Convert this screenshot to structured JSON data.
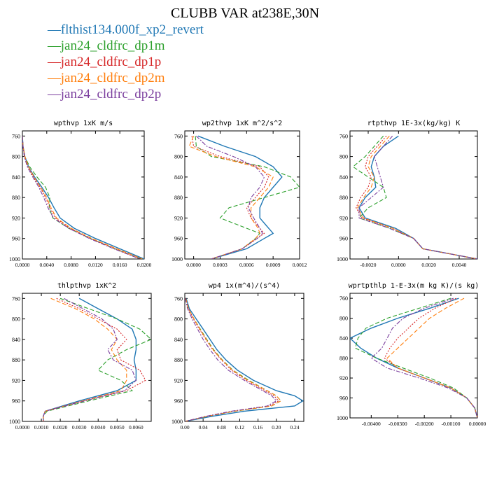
{
  "figure": {
    "title": "CLUBB VAR at238E,30N"
  },
  "legend": {
    "items": [
      {
        "name": "flthist134.000f_xp2_revert",
        "color": "#1f77b4",
        "dash": "solid"
      },
      {
        "name": "jan24_cldfrc_dp1m",
        "color": "#2ca02c",
        "dash": "dash"
      },
      {
        "name": "jan24_cldfrc_dp1p",
        "color": "#d62728",
        "dash": "dot"
      },
      {
        "name": "jan24_cldfrc_dp2m",
        "color": "#ff7f0e",
        "dash": "dash"
      },
      {
        "name": "jan24_cldfrc_dp2p",
        "color": "#7b3f9e",
        "dash": "dashdot"
      }
    ]
  },
  "chart_data": [
    {
      "type": "line",
      "title": "wpthvp  1xK m/s",
      "xlim": [
        0.0,
        0.02
      ],
      "ylim": [
        1000,
        750
      ],
      "xticks": [
        "0.0000",
        "0.0040",
        "0.0080",
        "0.0120",
        "0.0160",
        "0.0200"
      ],
      "yticks": [
        "760",
        "800",
        "840",
        "880",
        "920",
        "960",
        "1000"
      ],
      "y": [
        760,
        780,
        800,
        820,
        840,
        860,
        880,
        900,
        920,
        940,
        960,
        980,
        1000
      ],
      "series": [
        {
          "name": "flthist134.000f_xp2_revert",
          "values": [
            0.0,
            0.0001,
            0.0004,
            0.001,
            0.002,
            0.0032,
            0.0043,
            0.0052,
            0.0062,
            0.0085,
            0.012,
            0.016,
            0.02
          ]
        },
        {
          "name": "jan24_cldfrc_dp1m",
          "values": [
            0.0,
            0.0001,
            0.0004,
            0.0012,
            0.0024,
            0.0038,
            0.0045,
            0.0044,
            0.005,
            0.0076,
            0.0112,
            0.0152,
            0.0196
          ]
        },
        {
          "name": "jan24_cldfrc_dp1p",
          "values": [
            0.0,
            0.0001,
            0.0004,
            0.0009,
            0.0018,
            0.0029,
            0.0038,
            0.0045,
            0.0054,
            0.0078,
            0.0112,
            0.0152,
            0.0195
          ]
        },
        {
          "name": "jan24_cldfrc_dp2m",
          "values": [
            0.0,
            0.0001,
            0.0004,
            0.001,
            0.0019,
            0.003,
            0.004,
            0.0047,
            0.0056,
            0.008,
            0.0114,
            0.0155,
            0.0197
          ]
        },
        {
          "name": "jan24_cldfrc_dp2p",
          "values": [
            0.0,
            0.0001,
            0.0003,
            0.0008,
            0.0017,
            0.0027,
            0.0035,
            0.0042,
            0.0051,
            0.0076,
            0.011,
            0.015,
            0.0193
          ]
        }
      ]
    },
    {
      "type": "line",
      "title": "wp2thvp  1xK m^2/s^2",
      "xlim": [
        -0.0001,
        0.0012
      ],
      "ylim": [
        1000,
        750
      ],
      "xticks": [
        "0.0000",
        "0.0003",
        "0.0006",
        "0.0009",
        "0.0012"
      ],
      "yticks": [
        "760",
        "800",
        "840",
        "880",
        "920",
        "960",
        "1000"
      ],
      "y": [
        760,
        780,
        800,
        820,
        840,
        860,
        880,
        900,
        920,
        940,
        950,
        960,
        980,
        1000
      ],
      "series": [
        {
          "name": "flthist134.000f_xp2_revert",
          "values": [
            5e-05,
            0.00035,
            0.0007,
            0.0009,
            0.001,
            0.0009,
            0.0008,
            0.00075,
            0.00075,
            0.00085,
            0.0009,
            0.0008,
            0.0006,
            0.0002
          ]
        },
        {
          "name": "jan24_cldfrc_dp1m",
          "values": [
            2e-05,
            3e-05,
            0.0002,
            0.0008,
            0.0011,
            0.0012,
            0.0008,
            0.0004,
            0.0003,
            0.0006,
            0.00075,
            0.0007,
            0.00055,
            0.0002
          ]
        },
        {
          "name": "jan24_cldfrc_dp1p",
          "values": [
            -2e-05,
            0.0,
            0.0003,
            0.00075,
            0.00085,
            0.0008,
            0.0007,
            0.0006,
            0.00065,
            0.00075,
            0.0008,
            0.00072,
            0.00055,
            0.0002
          ]
        },
        {
          "name": "jan24_cldfrc_dp2m",
          "values": [
            0.0,
            -5e-05,
            0.00025,
            0.0007,
            0.0009,
            0.00085,
            0.00075,
            0.00065,
            0.00065,
            0.00073,
            0.00075,
            0.0007,
            0.00055,
            0.0002
          ]
        },
        {
          "name": "jan24_cldfrc_dp2p",
          "values": [
            3e-05,
            0.00015,
            0.00045,
            0.0007,
            0.0008,
            0.00075,
            0.00065,
            0.00062,
            0.00068,
            0.00075,
            0.00078,
            0.00072,
            0.00055,
            0.0002
          ]
        }
      ]
    },
    {
      "type": "line",
      "title": "rtpthvp  1E-3x(kg/kg) K",
      "xlim": [
        -0.0032,
        0.0052
      ],
      "ylim": [
        1000,
        750
      ],
      "xticks": [
        "-0.0020",
        "0.0000",
        "0.0020",
        "0.0040"
      ],
      "yticks": [
        "760",
        "800",
        "840",
        "880",
        "920",
        "960",
        "1000"
      ],
      "y": [
        760,
        780,
        800,
        820,
        840,
        860,
        880,
        900,
        920,
        940,
        960,
        980,
        1000
      ],
      "series": [
        {
          "name": "flthist134.000f_xp2_revert",
          "values": [
            0.0,
            -0.001,
            -0.0016,
            -0.0018,
            -0.0016,
            -0.0015,
            -0.0022,
            -0.0026,
            -0.0022,
            -0.0002,
            0.001,
            0.0016,
            0.0052
          ]
        },
        {
          "name": "jan24_cldfrc_dp1m",
          "values": [
            -0.001,
            -0.0016,
            -0.0022,
            -0.003,
            -0.002,
            -0.001,
            -0.0008,
            -0.002,
            -0.0026,
            -0.0006,
            0.001,
            0.0016,
            0.0052
          ]
        },
        {
          "name": "jan24_cldfrc_dp1p",
          "values": [
            -0.0008,
            -0.0014,
            -0.002,
            -0.0022,
            -0.0018,
            -0.002,
            -0.0025,
            -0.0028,
            -0.0024,
            -0.0004,
            0.001,
            0.0016,
            0.0052
          ]
        },
        {
          "name": "jan24_cldfrc_dp2m",
          "values": [
            -0.0006,
            -0.0012,
            -0.0018,
            -0.002,
            -0.0016,
            -0.0018,
            -0.0023,
            -0.0027,
            -0.0023,
            -0.0004,
            0.001,
            0.0016,
            0.0052
          ]
        },
        {
          "name": "jan24_cldfrc_dp2p",
          "values": [
            -0.0004,
            -0.001,
            -0.0016,
            -0.0014,
            -0.0012,
            -0.001,
            -0.0018,
            -0.0026,
            -0.0026,
            -0.0006,
            0.001,
            0.0016,
            0.0052
          ]
        }
      ]
    },
    {
      "type": "line",
      "title": "thlpthvp  1xK^2",
      "xlim": [
        0.0,
        0.0068
      ],
      "ylim": [
        1000,
        750
      ],
      "xticks": [
        "0.0000",
        "0.0010",
        "0.0020",
        "0.0030",
        "0.0040",
        "0.0050",
        "0.0060"
      ],
      "yticks": [
        "760",
        "800",
        "840",
        "880",
        "920",
        "960",
        "1000"
      ],
      "y": [
        760,
        780,
        800,
        820,
        840,
        860,
        880,
        900,
        920,
        940,
        960,
        980,
        990,
        1000
      ],
      "series": [
        {
          "name": "flthist134.000f_xp2_revert",
          "values": [
            0.003,
            0.004,
            0.005,
            0.0058,
            0.006,
            0.006,
            0.0059,
            0.006,
            0.006,
            0.005,
            0.003,
            0.0012,
            0.0011,
            0.0011
          ]
        },
        {
          "name": "jan24_cldfrc_dp1m",
          "values": [
            0.002,
            0.0035,
            0.005,
            0.0062,
            0.0068,
            0.0055,
            0.0045,
            0.004,
            0.0052,
            0.0058,
            0.0035,
            0.0013,
            0.0011,
            0.0011
          ]
        },
        {
          "name": "jan24_cldfrc_dp1p",
          "values": [
            0.0018,
            0.003,
            0.004,
            0.005,
            0.0055,
            0.005,
            0.0052,
            0.0062,
            0.0065,
            0.0055,
            0.0032,
            0.0012,
            0.0011,
            0.0011
          ]
        },
        {
          "name": "jan24_cldfrc_dp2m",
          "values": [
            0.0015,
            0.0028,
            0.0038,
            0.0045,
            0.005,
            0.0047,
            0.005,
            0.0055,
            0.0055,
            0.0052,
            0.0032,
            0.0012,
            0.0011,
            0.0011
          ]
        },
        {
          "name": "jan24_cldfrc_dp2p",
          "values": [
            0.0022,
            0.0032,
            0.0042,
            0.0048,
            0.005,
            0.0045,
            0.0048,
            0.0058,
            0.006,
            0.0054,
            0.0033,
            0.0012,
            0.0011,
            0.0011
          ]
        }
      ]
    },
    {
      "type": "line",
      "title": "wp4  1x(m^4)/(s^4)",
      "xlim": [
        0.0,
        0.26
      ],
      "ylim": [
        1000,
        750
      ],
      "xticks": [
        "0.00",
        "0.04",
        "0.08",
        "0.12",
        "0.16",
        "0.20",
        "0.24"
      ],
      "yticks": [
        "760",
        "800",
        "840",
        "880",
        "920",
        "960",
        "1000"
      ],
      "y": [
        760,
        780,
        800,
        820,
        840,
        860,
        880,
        900,
        920,
        940,
        950,
        960,
        970,
        980,
        990,
        1000
      ],
      "series": [
        {
          "name": "flthist134.000f_xp2_revert",
          "values": [
            0.003,
            0.01,
            0.025,
            0.04,
            0.055,
            0.07,
            0.09,
            0.115,
            0.15,
            0.2,
            0.24,
            0.258,
            0.24,
            0.13,
            0.06,
            0.0
          ]
        },
        {
          "name": "jan24_cldfrc_dp1m",
          "values": [
            0.002,
            0.008,
            0.02,
            0.034,
            0.048,
            0.063,
            0.082,
            0.105,
            0.14,
            0.18,
            0.2,
            0.21,
            0.19,
            0.11,
            0.05,
            0.0
          ]
        },
        {
          "name": "jan24_cldfrc_dp1p",
          "values": [
            0.002,
            0.008,
            0.019,
            0.032,
            0.046,
            0.061,
            0.08,
            0.102,
            0.135,
            0.175,
            0.195,
            0.205,
            0.185,
            0.105,
            0.048,
            0.0
          ]
        },
        {
          "name": "jan24_cldfrc_dp2m",
          "values": [
            0.002,
            0.008,
            0.02,
            0.033,
            0.047,
            0.062,
            0.081,
            0.104,
            0.138,
            0.18,
            0.2,
            0.21,
            0.19,
            0.108,
            0.049,
            0.0
          ]
        },
        {
          "name": "jan24_cldfrc_dp2p",
          "values": [
            0.001,
            0.006,
            0.016,
            0.028,
            0.04,
            0.055,
            0.072,
            0.095,
            0.13,
            0.17,
            0.19,
            0.2,
            0.18,
            0.102,
            0.046,
            0.0
          ]
        }
      ]
    },
    {
      "type": "line",
      "title": "wprtpthlp  1-E-3x(m kg K)/(s kg)",
      "xlim": [
        -0.0048,
        0.0
      ],
      "ylim": [
        1000,
        750
      ],
      "xticks": [
        "-0.00400",
        "-0.00300",
        "-0.00200",
        "-0.00100",
        "0.00000"
      ],
      "yticks": [
        "760",
        "800",
        "840",
        "880",
        "920",
        "960",
        "1000"
      ],
      "y": [
        760,
        780,
        800,
        820,
        840,
        860,
        880,
        900,
        920,
        940,
        960,
        980,
        1000
      ],
      "series": [
        {
          "name": "flthist134.000f_xp2_revert",
          "values": [
            -0.0007,
            -0.0018,
            -0.003,
            -0.004,
            -0.0048,
            -0.0044,
            -0.0038,
            -0.003,
            -0.002,
            -0.001,
            -0.0004,
            -0.0001,
            0.0
          ]
        },
        {
          "name": "jan24_cldfrc_dp1m",
          "values": [
            -0.001,
            -0.0022,
            -0.0034,
            -0.0042,
            -0.0045,
            -0.0046,
            -0.0038,
            -0.0028,
            -0.0018,
            -0.0009,
            -0.0004,
            -0.0001,
            0.0
          ]
        },
        {
          "name": "jan24_cldfrc_dp1p",
          "values": [
            -0.0008,
            -0.0016,
            -0.0022,
            -0.0026,
            -0.003,
            -0.0033,
            -0.0035,
            -0.003,
            -0.002,
            -0.001,
            -0.0004,
            -0.0001,
            0.0
          ]
        },
        {
          "name": "jan24_cldfrc_dp2m",
          "values": [
            -0.0005,
            -0.0012,
            -0.0018,
            -0.0022,
            -0.0026,
            -0.003,
            -0.0034,
            -0.003,
            -0.002,
            -0.001,
            -0.0004,
            -0.0001,
            0.0
          ]
        },
        {
          "name": "jan24_cldfrc_dp2p",
          "values": [
            -0.0009,
            -0.002,
            -0.0028,
            -0.0032,
            -0.0034,
            -0.0036,
            -0.004,
            -0.0034,
            -0.0022,
            -0.0011,
            -0.0004,
            -0.0001,
            0.0
          ]
        }
      ]
    }
  ]
}
